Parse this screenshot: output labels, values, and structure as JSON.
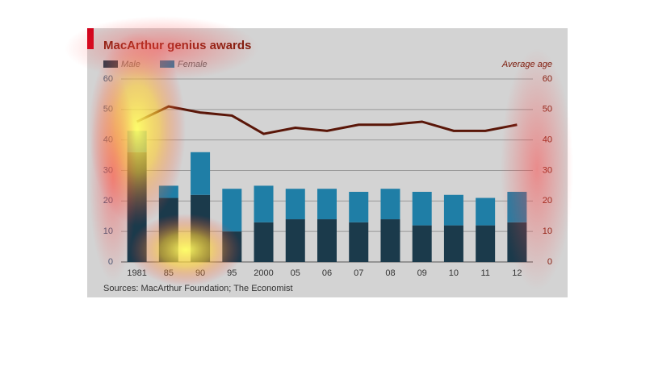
{
  "chart_data": {
    "type": "bar",
    "title": "MacArthur genius awards",
    "source": "Sources: MacArthur Foundation; The Economist",
    "y2_label": "Average age",
    "categories": [
      "1981",
      "85",
      "90",
      "95",
      "2000",
      "05",
      "06",
      "07",
      "08",
      "09",
      "10",
      "11",
      "12"
    ],
    "series": [
      {
        "name": "Male",
        "color": "#1b3a4b",
        "values": [
          36,
          21,
          22,
          10,
          13,
          14,
          14,
          13,
          14,
          12,
          12,
          12,
          13
        ]
      },
      {
        "name": "Female",
        "color": "#1f7ea6",
        "values": [
          7,
          4,
          14,
          14,
          12,
          10,
          10,
          10,
          10,
          11,
          10,
          9,
          10
        ]
      },
      {
        "name": "Average age",
        "type": "line",
        "axis": "y2",
        "color": "#5a1608",
        "values": [
          46,
          51,
          49,
          48,
          42,
          44,
          43,
          45,
          45,
          46,
          43,
          43,
          45
        ]
      }
    ],
    "stacked": true,
    "ylim": [
      0,
      60
    ],
    "yticks": [
      0,
      10,
      20,
      30,
      40,
      50,
      60
    ],
    "y2lim": [
      0,
      60
    ],
    "y2ticks": [
      0,
      10,
      20,
      30,
      40,
      50,
      60
    ],
    "grid": true
  }
}
